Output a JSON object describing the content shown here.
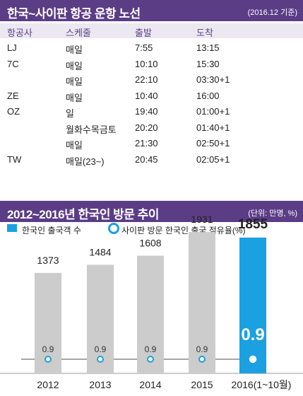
{
  "flights": {
    "title": "한국~사이판 항공 운항 노선",
    "note": "(2016.12 기준)",
    "headers": [
      "항공사",
      "스케줄",
      "출발",
      "도착"
    ],
    "rows": [
      [
        "LJ",
        "매일",
        "7:55",
        "13:15"
      ],
      [
        "7C",
        "매일",
        "10:10",
        "15:30"
      ],
      [
        "",
        "매일",
        "22:10",
        "03:30+1"
      ],
      [
        "ZE",
        "매일",
        "10:40",
        "16:00"
      ],
      [
        "OZ",
        "일",
        "19:40",
        "01:00+1"
      ],
      [
        "",
        "월화수목금토",
        "20:20",
        "01:40+1"
      ],
      [
        "",
        "매일",
        "21:30",
        "02:50+1"
      ],
      [
        "TW",
        "매일(23~)",
        "20:45",
        "02:05+1"
      ]
    ]
  },
  "visitors": {
    "title": "2012~2016년 한국인 방문 추이",
    "note": "(단위: 만명, %)",
    "legend_bar": "한국인 출국객 수",
    "legend_line": "사이판 방문 한국인 출국 점유율(%)"
  },
  "chart_data": {
    "type": "bar",
    "categories": [
      "2012",
      "2013",
      "2014",
      "2015",
      "2016(1~10월)"
    ],
    "series": [
      {
        "name": "한국인 출국객 수",
        "values": [
          1373,
          1484,
          1608,
          1931,
          1855
        ]
      },
      {
        "name": "사이판 방문 한국인 출국 점유율(%)",
        "values": [
          0.9,
          0.9,
          0.9,
          0.9,
          0.9
        ]
      }
    ],
    "bar_labels": [
      "1373",
      "1484",
      "1608",
      "1931",
      "1855"
    ],
    "share_labels": [
      "0.9",
      "0.9",
      "0.9",
      "0.9",
      "0.9"
    ],
    "highlight_index": 4,
    "colors": {
      "bar": "#cccccc",
      "highlight": "#1ba0e1",
      "line": "#888888",
      "marker": "#1ba0e1",
      "header": "#5b3d86"
    }
  }
}
